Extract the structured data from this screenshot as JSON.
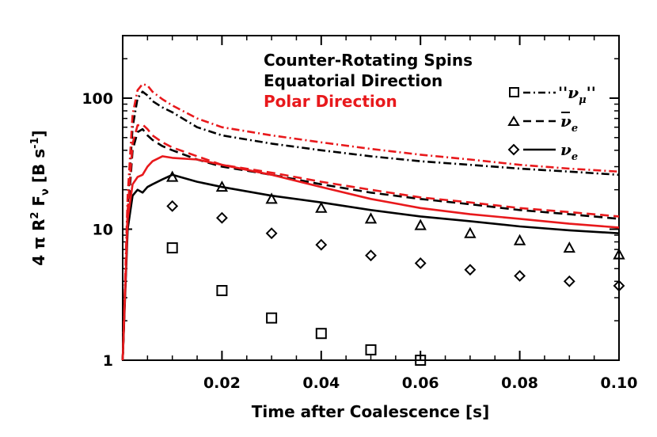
{
  "chart_data": {
    "type": "line",
    "title": "",
    "xlabel": "Time after Coalescence [s]",
    "ylabel": "4 π R² F_ν [B s⁻¹]",
    "ylabel_parts": {
      "a": "4 π R",
      "b": "2",
      "c": " F",
      "d": "ν",
      "e": " [B s",
      "f": "-1",
      "g": "]"
    },
    "xlim": [
      0.0,
      0.1
    ],
    "ylim": [
      1,
      300
    ],
    "yscale": "log",
    "xticks": [
      0.02,
      0.04,
      0.06,
      0.08,
      0.1
    ],
    "xtick_labels": [
      "0.02",
      "0.04",
      "0.06",
      "0.08",
      "0.10"
    ],
    "yticks": [
      1,
      10,
      100
    ],
    "ytick_labels": [
      "1",
      "10",
      "100"
    ],
    "annotations": [
      {
        "text": "Counter-Rotating Spins",
        "color": "#000000"
      },
      {
        "text": "Equatorial Direction",
        "color": "#000000"
      },
      {
        "text": "Polar Direction",
        "color": "#e8191c"
      }
    ],
    "legend": [
      {
        "label": "''ν",
        "sub": "μ",
        "label_end": "''",
        "marker": "square",
        "linestyle": "dashdot"
      },
      {
        "label": "ν",
        "sub": "e",
        "overbar": true,
        "marker": "triangle",
        "linestyle": "dashed"
      },
      {
        "label": "ν",
        "sub": "e",
        "overbar": false,
        "marker": "diamond",
        "linestyle": "solid"
      }
    ],
    "series": [
      {
        "name": "nu_mu equatorial",
        "color": "#000000",
        "dash": "dashdot",
        "x": [
          0.0,
          0.001,
          0.002,
          0.003,
          0.004,
          0.005,
          0.006,
          0.008,
          0.01,
          0.015,
          0.02,
          0.03,
          0.04,
          0.05,
          0.06,
          0.07,
          0.08,
          0.09,
          0.1
        ],
        "y": [
          1.0,
          15,
          60,
          100,
          112,
          105,
          95,
          85,
          78,
          60,
          52,
          45,
          40,
          36,
          33,
          31,
          29,
          27.5,
          26
        ]
      },
      {
        "name": "nu_mu polar",
        "color": "#e8191c",
        "dash": "dashdot",
        "x": [
          0.0,
          0.001,
          0.002,
          0.003,
          0.004,
          0.005,
          0.006,
          0.008,
          0.01,
          0.015,
          0.02,
          0.03,
          0.04,
          0.05,
          0.06,
          0.07,
          0.08,
          0.09,
          0.1
        ],
        "y": [
          1.0,
          18,
          75,
          115,
          128,
          125,
          112,
          98,
          88,
          70,
          60,
          52,
          46,
          41,
          37,
          34,
          31,
          29,
          27.5
        ]
      },
      {
        "name": "anti-nu_e equatorial",
        "color": "#000000",
        "dash": "dashed",
        "x": [
          0.0,
          0.001,
          0.002,
          0.003,
          0.004,
          0.005,
          0.006,
          0.008,
          0.01,
          0.015,
          0.02,
          0.03,
          0.04,
          0.05,
          0.06,
          0.07,
          0.08,
          0.09,
          0.1
        ],
        "y": [
          1.0,
          12,
          40,
          55,
          58,
          52,
          48,
          43,
          40,
          34,
          30,
          26,
          22,
          19,
          17,
          15.5,
          14,
          13,
          12
        ]
      },
      {
        "name": "anti-nu_e polar",
        "color": "#e8191c",
        "dash": "dashed",
        "x": [
          0.0,
          0.001,
          0.002,
          0.003,
          0.004,
          0.005,
          0.006,
          0.008,
          0.01,
          0.015,
          0.02,
          0.03,
          0.04,
          0.05,
          0.06,
          0.07,
          0.08,
          0.09,
          0.1
        ],
        "y": [
          1.0,
          14,
          45,
          62,
          63,
          58,
          52,
          46,
          42,
          36,
          31,
          27,
          23,
          20,
          17.5,
          16,
          14.5,
          13.5,
          12.5
        ]
      },
      {
        "name": "nu_e equatorial",
        "color": "#000000",
        "dash": "solid",
        "x": [
          0.0,
          0.001,
          0.002,
          0.003,
          0.004,
          0.005,
          0.006,
          0.008,
          0.01,
          0.015,
          0.02,
          0.03,
          0.04,
          0.05,
          0.06,
          0.07,
          0.08,
          0.09,
          0.1
        ],
        "y": [
          1.0,
          10,
          18,
          20,
          19,
          21,
          22,
          24,
          26,
          23,
          21,
          18,
          16,
          14,
          12.5,
          11.5,
          10.5,
          9.8,
          9.3
        ]
      },
      {
        "name": "nu_e polar",
        "color": "#e8191c",
        "dash": "solid",
        "x": [
          0.0,
          0.001,
          0.002,
          0.003,
          0.004,
          0.005,
          0.006,
          0.008,
          0.01,
          0.015,
          0.02,
          0.03,
          0.04,
          0.05,
          0.06,
          0.07,
          0.08,
          0.09,
          0.1
        ],
        "y": [
          1.0,
          12,
          22,
          25,
          26,
          30,
          33,
          36,
          35,
          34,
          31,
          26,
          21,
          17,
          14.5,
          13,
          12,
          11,
          10.3
        ]
      }
    ],
    "markers": [
      {
        "name": "nu_mu markers",
        "marker": "square",
        "x": [
          0.01,
          0.02,
          0.03,
          0.04,
          0.05,
          0.06
        ],
        "y": [
          7.2,
          3.4,
          2.1,
          1.6,
          1.2,
          1.0
        ]
      },
      {
        "name": "anti-nu_e markers",
        "marker": "triangle",
        "x": [
          0.01,
          0.02,
          0.03,
          0.04,
          0.05,
          0.06,
          0.07,
          0.08,
          0.09,
          0.1
        ],
        "y": [
          25,
          21,
          17,
          14.5,
          12,
          10.7,
          9.3,
          8.2,
          7.2,
          6.4
        ]
      },
      {
        "name": "nu_e markers",
        "marker": "diamond",
        "x": [
          0.01,
          0.02,
          0.03,
          0.04,
          0.05,
          0.06,
          0.07,
          0.08,
          0.09,
          0.1
        ],
        "y": [
          15,
          12.2,
          9.3,
          7.6,
          6.3,
          5.5,
          4.9,
          4.4,
          4.0,
          3.7
        ]
      }
    ]
  }
}
